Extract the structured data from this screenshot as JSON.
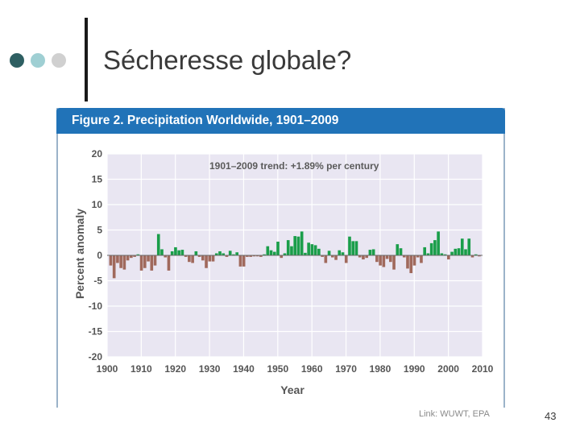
{
  "slide": {
    "title": "Sécheresse globale?",
    "link": "Link: WUWT, EPA",
    "page_number": "43"
  },
  "colors": {
    "dot1": "#2e5f62",
    "dot2": "#9fcfd3",
    "dot3": "#d0d0d0",
    "header_bg": "#2173b8",
    "plot_bg": "#e9e6f2",
    "positive_bar": "#1a9e4a",
    "negative_bar": "#a0695c"
  },
  "chart_data": {
    "type": "bar",
    "title": "Figure 2. Precipitation Worldwide, 1901–2009",
    "annotation": "1901–2009 trend: +1.89% per century",
    "xlabel": "Year",
    "ylabel": "Percent anomaly",
    "xlim": [
      1900,
      2010
    ],
    "ylim": [
      -20,
      20
    ],
    "x_ticks": [
      "1900",
      "1910",
      "1920",
      "1930",
      "1940",
      "1950",
      "1960",
      "1970",
      "1980",
      "1990",
      "2000",
      "2010"
    ],
    "y_ticks": [
      "20",
      "15",
      "10",
      "5",
      "0",
      "-5",
      "-10",
      "-15",
      "-20"
    ],
    "grid": true,
    "x_start": 1901,
    "values": [
      -2.0,
      -4.5,
      -1.5,
      -2.5,
      -2.8,
      -1.0,
      -0.5,
      -0.3,
      0.2,
      -3.0,
      -2.5,
      -1.2,
      -3.0,
      -2.0,
      4.2,
      1.2,
      -0.4,
      -3.0,
      0.8,
      1.6,
      1.0,
      1.1,
      -0.3,
      -1.3,
      -1.5,
      0.8,
      -0.3,
      -1.0,
      -2.5,
      -1.2,
      -1.2,
      0.4,
      0.8,
      0.4,
      -0.3,
      0.9,
      0.2,
      0.6,
      -2.2,
      -2.2,
      -0.3,
      -0.3,
      -0.2,
      -0.2,
      -0.3,
      0.2,
      1.8,
      1.0,
      0.7,
      2.7,
      -0.5,
      0.4,
      3.0,
      1.8,
      3.8,
      3.7,
      4.7,
      0.5,
      2.5,
      2.2,
      2.0,
      1.3,
      -0.3,
      -1.5,
      0.9,
      -0.4,
      -0.9,
      1.0,
      0.6,
      -1.5,
      3.7,
      2.8,
      2.8,
      -0.4,
      -0.8,
      -0.5,
      1.1,
      1.2,
      -1.3,
      -2.0,
      -2.3,
      -0.7,
      -1.3,
      -2.8,
      2.2,
      1.4,
      -0.4,
      -2.6,
      -3.5,
      -2.0,
      -0.4,
      -1.5,
      1.6,
      0.4,
      2.4,
      3.0,
      4.7,
      0.4,
      0.2,
      -0.8,
      0.7,
      1.3,
      1.4,
      3.3,
      1.2,
      3.3,
      -0.4,
      0.2,
      -0.2
    ]
  }
}
